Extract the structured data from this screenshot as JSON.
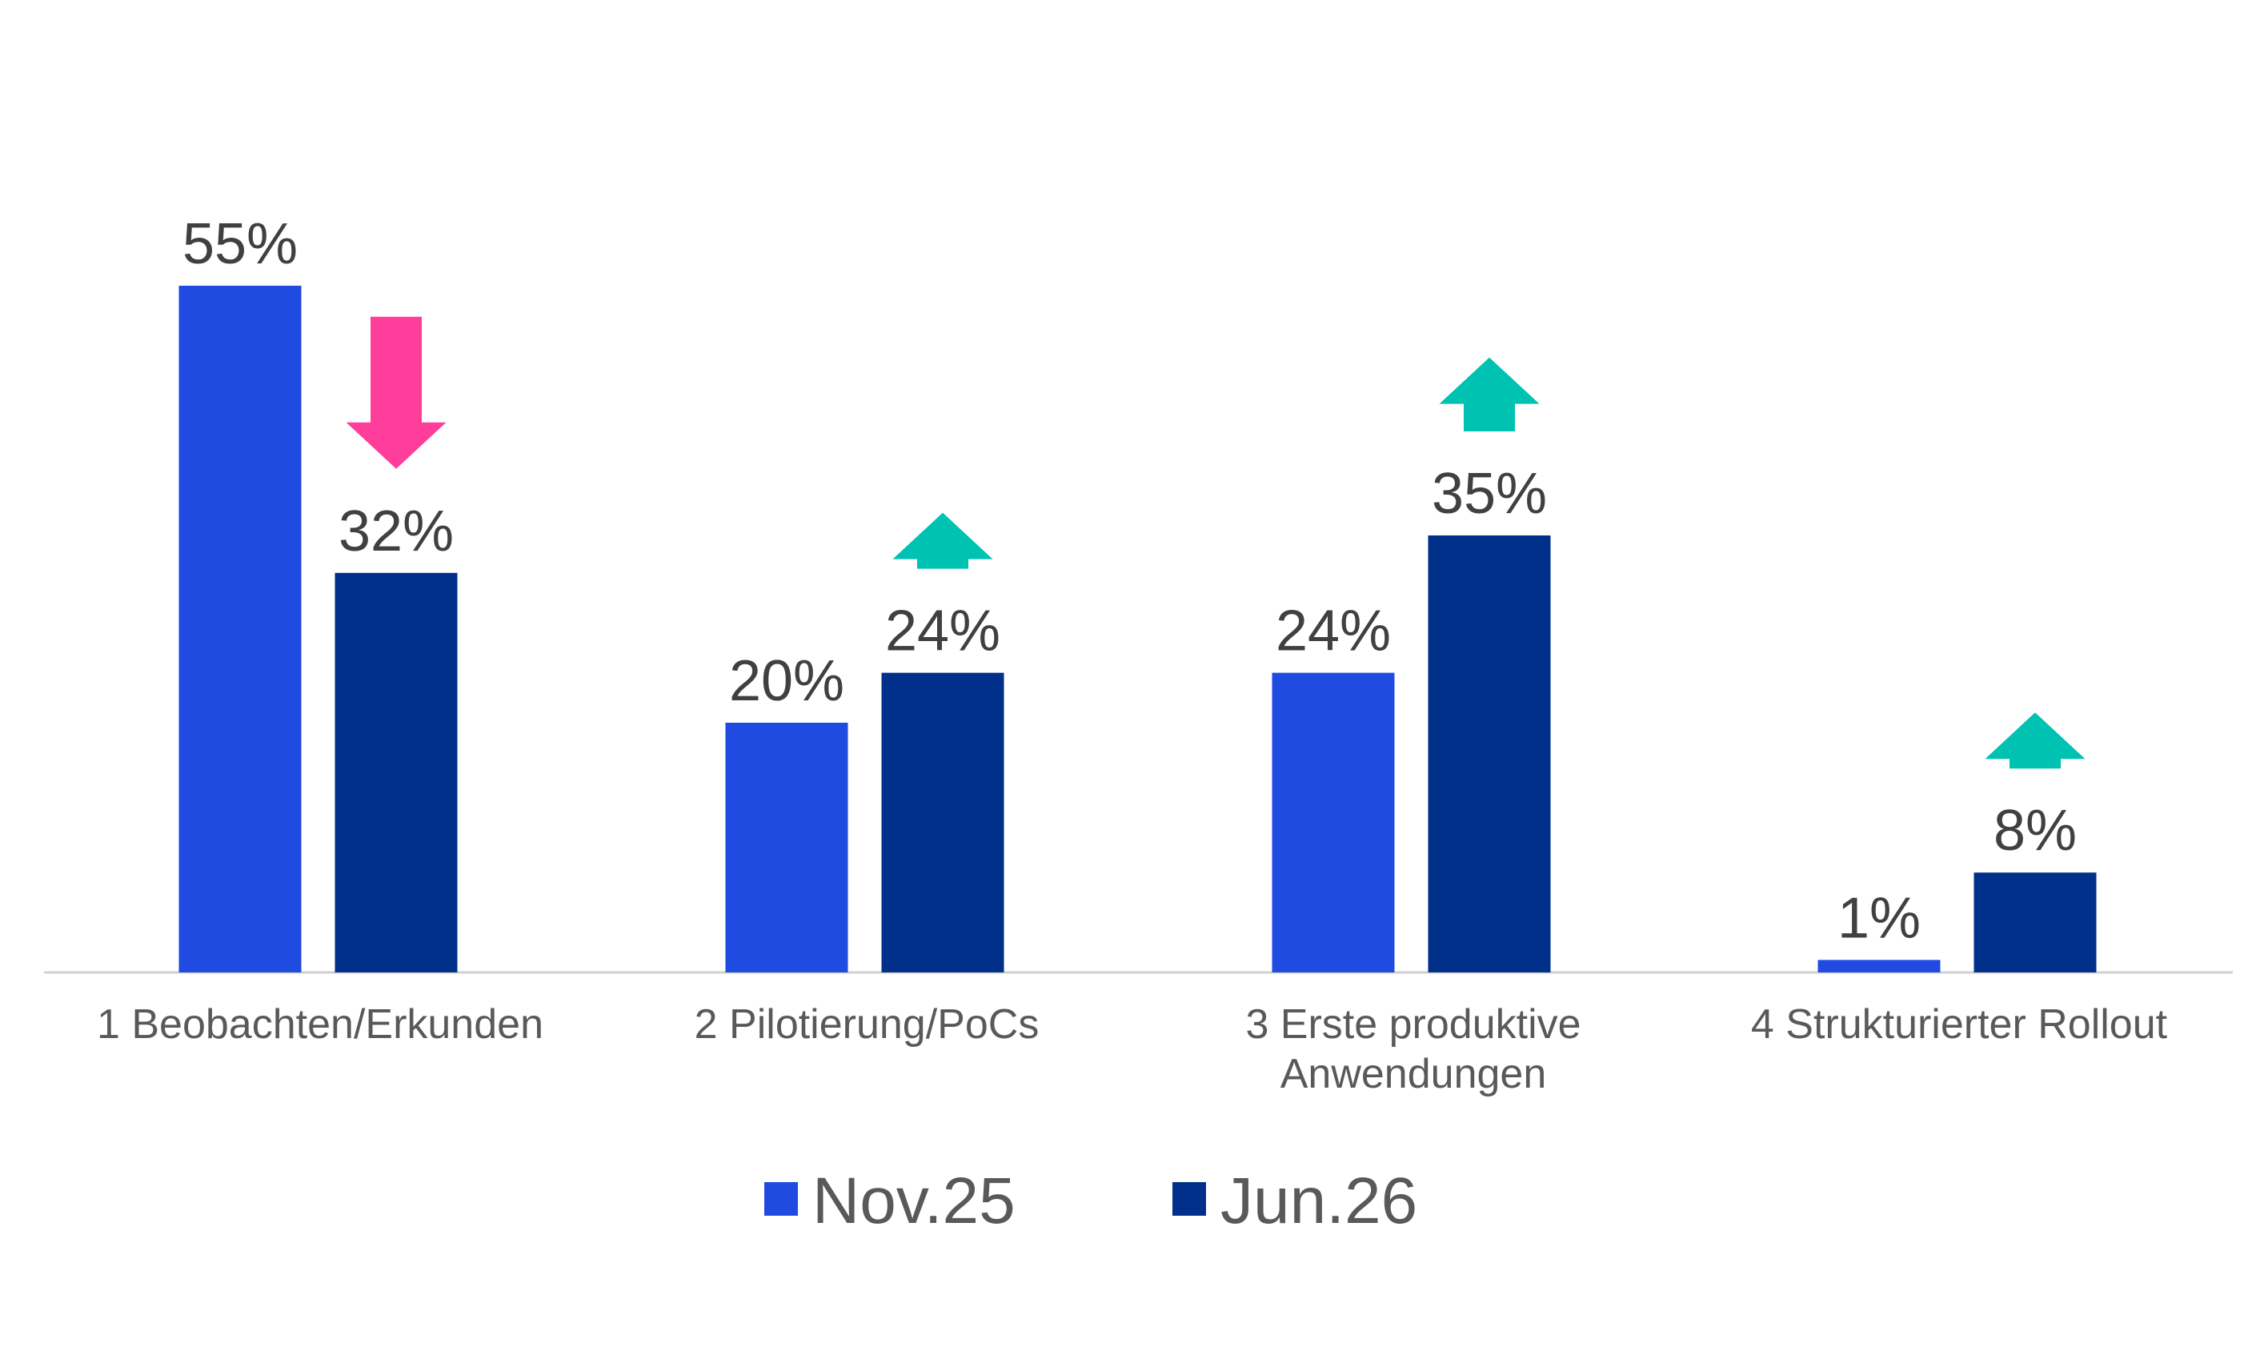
{
  "chart_data": {
    "type": "bar",
    "categories": [
      [
        "1 Beobachten/Erkunden"
      ],
      [
        "2 Pilotierung/PoCs"
      ],
      [
        "3 Erste produktive",
        "Anwendungen"
      ],
      [
        "4 Strukturierter Rollout"
      ]
    ],
    "series": [
      {
        "name": "Nov.25",
        "color": "#1f4be0",
        "values": [
          55,
          20,
          24,
          1
        ],
        "labels": [
          "55%",
          "20%",
          "24%",
          "1%"
        ]
      },
      {
        "name": "Jun.26",
        "color": "#00308a",
        "values": [
          32,
          24,
          35,
          8
        ],
        "labels": [
          "32%",
          "24%",
          "35%",
          "8%"
        ]
      }
    ],
    "trend_arrows": [
      {
        "category": 0,
        "direction": "down",
        "color": "#ff3d9a"
      },
      {
        "category": 1,
        "direction": "up",
        "color": "#00c2b2"
      },
      {
        "category": 2,
        "direction": "up",
        "color": "#00c2b2"
      },
      {
        "category": 3,
        "direction": "up",
        "color": "#00c2b2"
      }
    ],
    "ylim": [
      0,
      60
    ],
    "legend_position": "bottom",
    "grid": false,
    "axis_color": "#d0d0d0"
  }
}
